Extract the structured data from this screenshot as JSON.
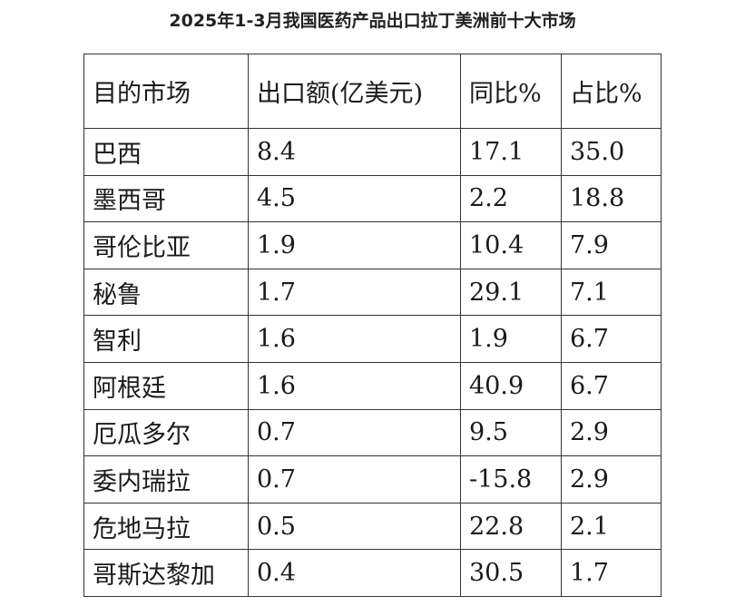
{
  "page": {
    "title": "2025年1-3月我国医药产品出口拉丁美洲前十大市场"
  },
  "chart_data": {
    "type": "table",
    "title": "2025年1-3月我国医药产品出口拉丁美洲前十大市场",
    "columns": [
      "目的市场",
      "出口额(亿美元)",
      "同比%",
      "占比%"
    ],
    "rows": [
      [
        "巴西",
        "8.4",
        "17.1",
        "35.0"
      ],
      [
        "墨西哥",
        "4.5",
        "2.2",
        "18.8"
      ],
      [
        "哥伦比亚",
        "1.9",
        "10.4",
        "7.9"
      ],
      [
        "秘鲁",
        "1.7",
        "29.1",
        "7.1"
      ],
      [
        "智利",
        "1.6",
        "1.9",
        "6.7"
      ],
      [
        "阿根廷",
        "1.6",
        "40.9",
        "6.7"
      ],
      [
        "厄瓜多尔",
        "0.7",
        "9.5",
        "2.9"
      ],
      [
        "委内瑞拉",
        "0.7",
        "-15.8",
        "2.9"
      ],
      [
        "危地马拉",
        "0.5",
        "22.8",
        "2.1"
      ],
      [
        "哥斯达黎加",
        "0.4",
        "30.5",
        "1.7"
      ]
    ]
  }
}
